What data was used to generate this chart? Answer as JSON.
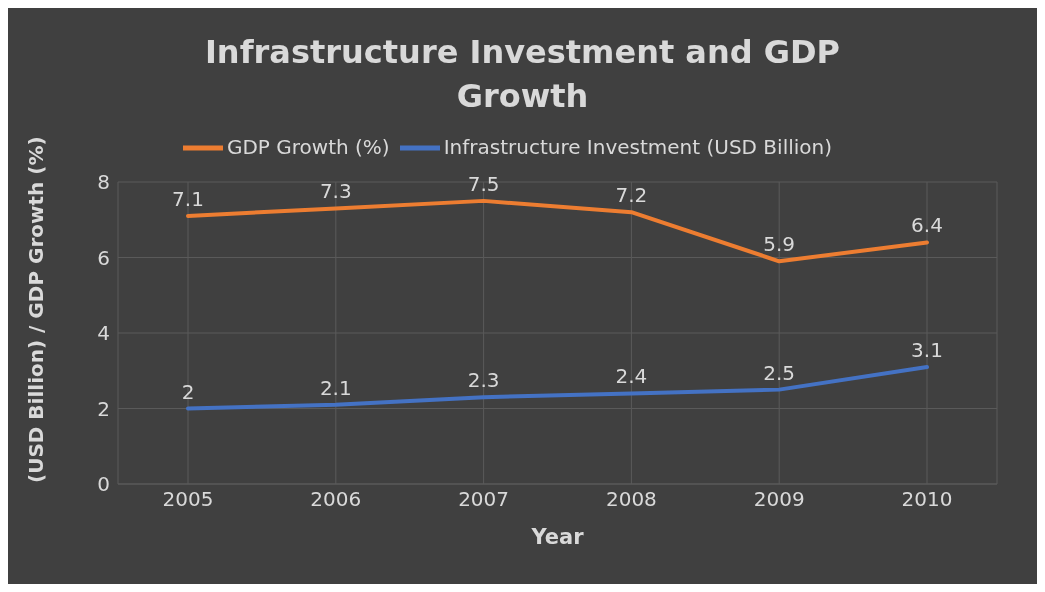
{
  "chart_data": {
    "type": "line",
    "title": "Infrastructure Investment and GDP Growth",
    "xlabel": "Year",
    "ylabel": "(USD Billion) / GDP Growth (%)",
    "categories": [
      "2005",
      "2006",
      "2007",
      "2008",
      "2009",
      "2010"
    ],
    "series": [
      {
        "name": "Infrastructure Investment (USD Billion)",
        "color": "#4472c4",
        "values": [
          2,
          2.1,
          2.3,
          2.4,
          2.5,
          3.1
        ]
      },
      {
        "name": "GDP Growth (%)",
        "color": "#ed7d31",
        "values": [
          7.1,
          7.3,
          7.5,
          7.2,
          5.9,
          6.4
        ]
      }
    ],
    "ylim": [
      0,
      8
    ],
    "yticks": [
      0,
      2,
      4,
      6,
      8
    ],
    "grid": true,
    "legend": "top",
    "data_labels": true,
    "marker": "none",
    "line_style": "solid"
  }
}
